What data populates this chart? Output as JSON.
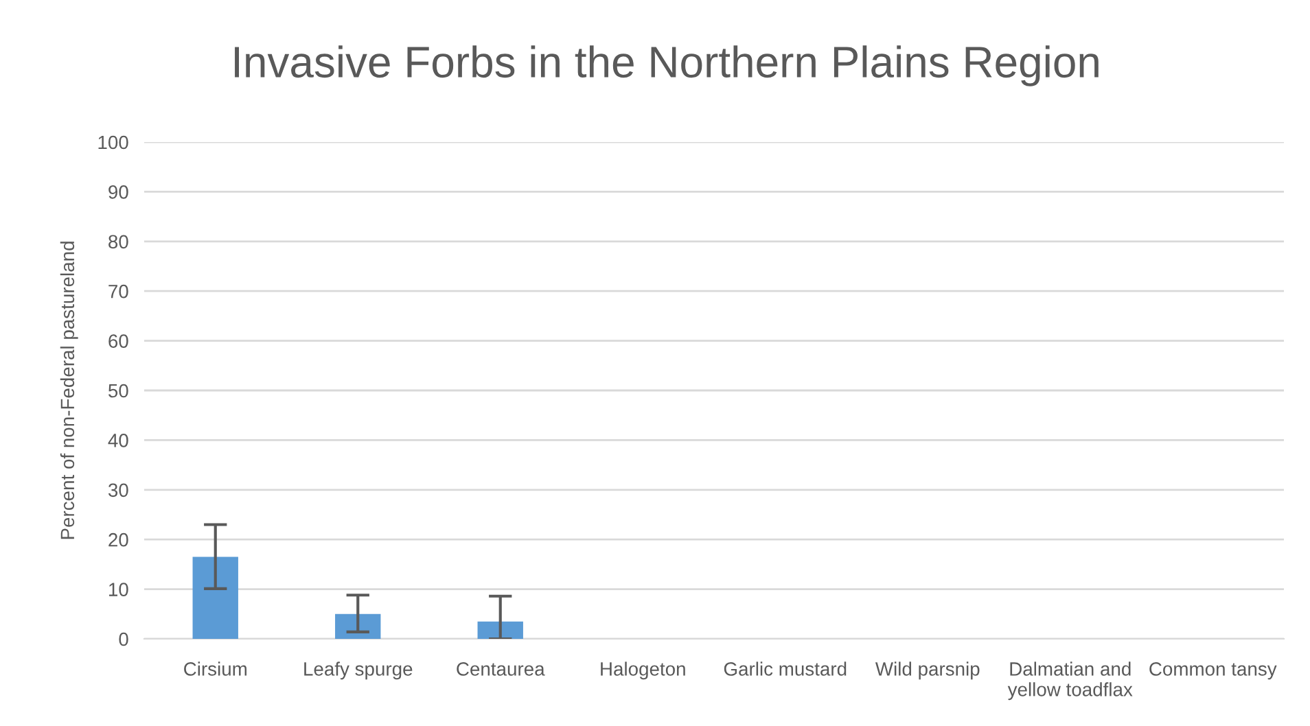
{
  "chart_data": {
    "type": "bar",
    "title": "Invasive Forbs in the Northern Plains Region",
    "ylabel": "Percent of non-Federal pastureland",
    "categories": [
      "Cirsium",
      "Leafy spurge",
      "Centaurea",
      "Halogeton",
      "Garlic mustard",
      "Wild parsnip",
      "Dalmatian and\nyellow toadflax",
      "Common tansy"
    ],
    "values": [
      16.5,
      5.0,
      3.5,
      null,
      null,
      null,
      null,
      null
    ],
    "errors": [
      [
        10.1,
        23.0
      ],
      [
        1.4,
        8.8
      ],
      [
        0,
        8.6
      ],
      null,
      null,
      null,
      null,
      null
    ],
    "color": "#5b9bd5",
    "ylim": [
      0,
      100
    ],
    "yticks": [
      0,
      10,
      20,
      30,
      40,
      50,
      60,
      70,
      80,
      90,
      100
    ],
    "grid": "y",
    "legend": false
  }
}
